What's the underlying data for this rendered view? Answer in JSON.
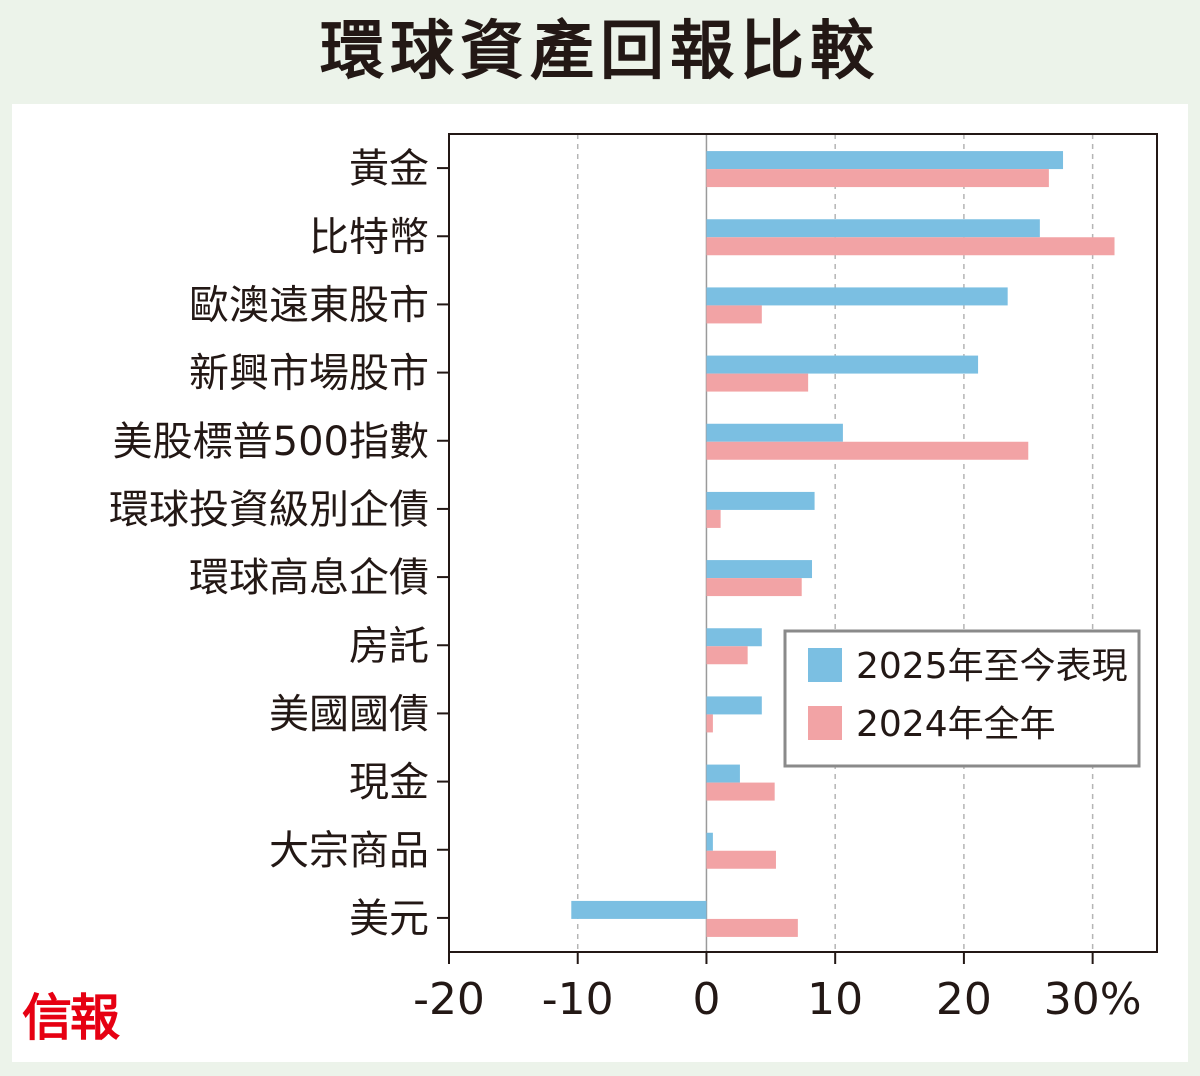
{
  "title": "環球資產回報比較",
  "brand": "信報",
  "colors": {
    "series_ytd": "#7bbfe2",
    "series_2024": "#f2a3a5",
    "axis": "#231815",
    "grid": "#b5b5b5",
    "text": "#231815"
  },
  "chart_data": {
    "type": "bar",
    "orientation": "horizontal",
    "title": "環球資產回報比較",
    "categories": [
      "黃金",
      "比特幣",
      "歐澳遠東股市",
      "新興市場股市",
      "美股標普500指數",
      "環球投資級別企債",
      "環球高息企債",
      "房託",
      "美國國債",
      "現金",
      "大宗商品",
      "美元"
    ],
    "series": [
      {
        "name": "2025年至今表現",
        "values": [
          27.7,
          25.9,
          23.4,
          21.1,
          10.6,
          8.4,
          8.2,
          4.3,
          4.3,
          2.6,
          0.5,
          -10.5
        ]
      },
      {
        "name": "2024年全年",
        "values": [
          26.6,
          31.7,
          4.3,
          7.9,
          25.0,
          1.1,
          7.4,
          3.2,
          0.5,
          5.3,
          5.4,
          7.1
        ]
      }
    ],
    "xlim": [
      -20,
      35
    ],
    "xticks": [
      -20,
      -10,
      0,
      10,
      20,
      30
    ],
    "xtick_labels": [
      "-20",
      "-10",
      "0",
      "10",
      "20",
      "30%"
    ],
    "gridlines": [
      -10,
      10,
      20,
      30
    ],
    "grid": true,
    "legend_position": "right"
  }
}
